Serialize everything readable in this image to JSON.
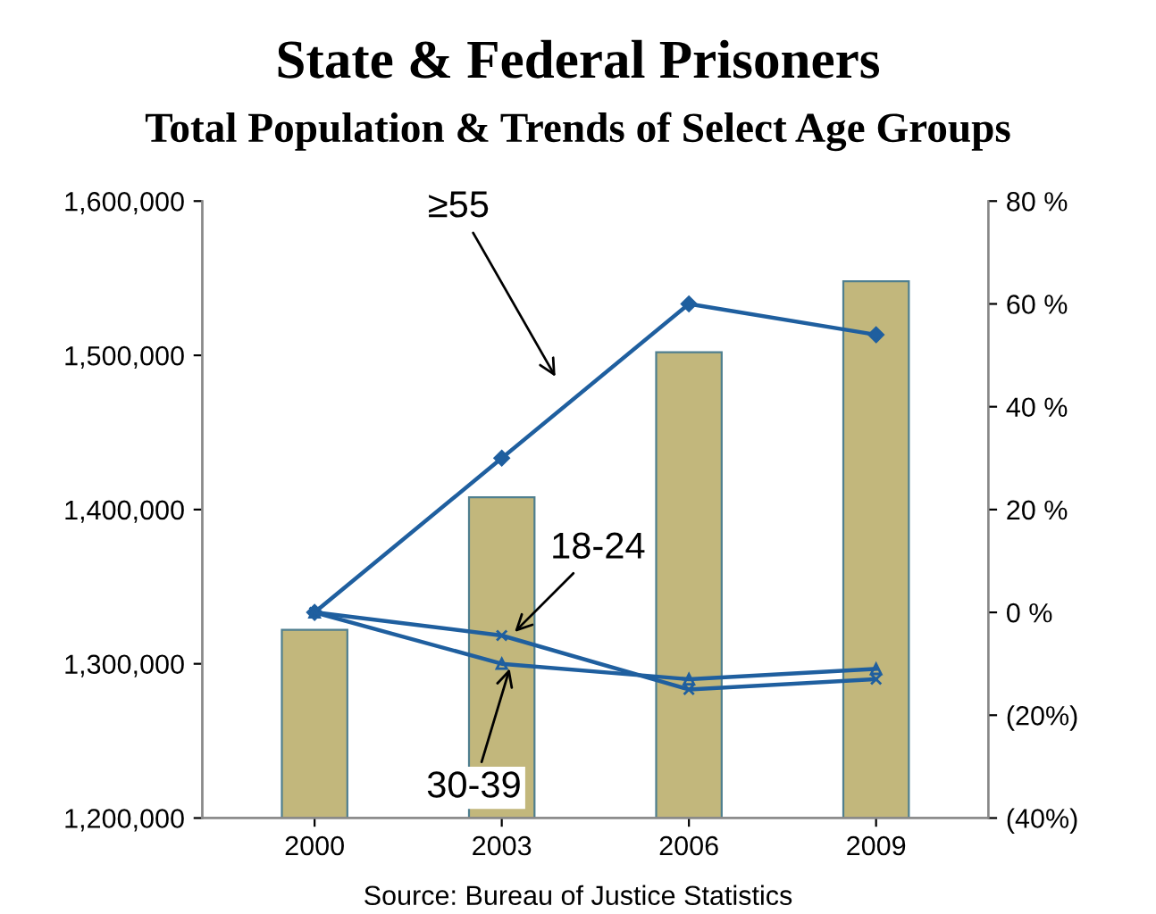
{
  "chart_data": {
    "type": "bar",
    "title": "State & Federal Prisoners",
    "subtitle": "Total Population & Trends of Select Age Groups",
    "categories": [
      "2000",
      "2003",
      "2006",
      "2009"
    ],
    "series": [
      {
        "color": "#c2b77c",
        "values": [
          1322000,
          1408000,
          1502000,
          1548000
        ]
      },
      {
        "type": "line",
        "name": "≥55",
        "axis": "y2",
        "color": "#1f5f9f",
        "marker": "diamond",
        "values": [
          0,
          30,
          60,
          54
        ]
      },
      {
        "type": "line",
        "name": "18-24",
        "axis": "y2",
        "color": "#1f5f9f",
        "marker": "cross",
        "values": [
          0,
          -4.5,
          -15,
          -13
        ]
      },
      {
        "type": "line",
        "name": "30-39",
        "axis": "y2",
        "color": "#1f5f9f",
        "marker": "triangle",
        "values": [
          0,
          -10,
          -13,
          -11
        ]
      }
    ],
    "ylim": [
      1200000,
      1600000
    ],
    "yticks": [
      {
        "value": 1200000,
        "label": "1,200,000"
      },
      {
        "value": 1300000,
        "label": "1,300,000"
      },
      {
        "value": 1400000,
        "label": "1,400,000"
      },
      {
        "value": 1500000,
        "label": "1,500,000"
      },
      {
        "value": 1600000,
        "label": "1,600,000"
      }
    ],
    "y2lim": [
      -40,
      80
    ],
    "y2ticks": [
      {
        "value": -40,
        "label": "(40%)"
      },
      {
        "value": -20,
        "label": "(20%)"
      },
      {
        "value": 0,
        "label": "0 %"
      },
      {
        "value": 20,
        "label": "20 %"
      },
      {
        "value": 40,
        "label": "40 %"
      },
      {
        "value": 60,
        "label": "60 %"
      },
      {
        "value": 80,
        "label": "80 %"
      }
    ],
    "grid": false,
    "legend": false,
    "line_style": "solid",
    "annotations": [
      "Source: Bureau of Justice Statistics"
    ]
  }
}
